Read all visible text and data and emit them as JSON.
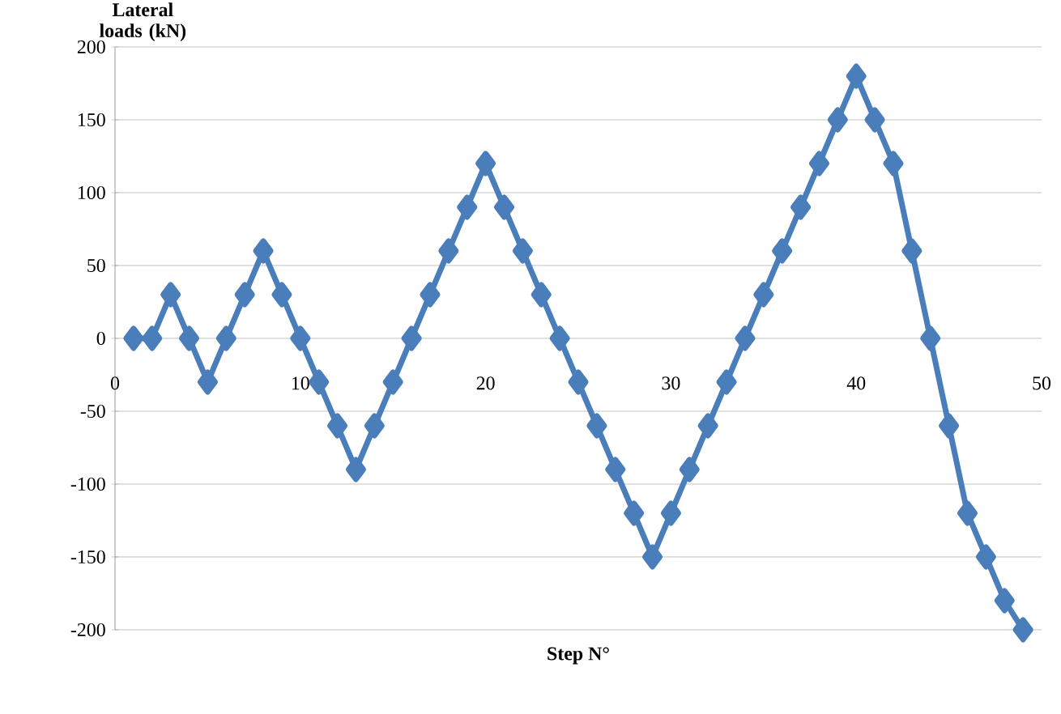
{
  "chart_data": {
    "type": "line",
    "xlabel": "Step N°",
    "ylabel": "Lateral loads (kN)",
    "x": [
      1,
      2,
      3,
      4,
      5,
      6,
      7,
      8,
      9,
      10,
      11,
      12,
      13,
      14,
      15,
      16,
      17,
      18,
      19,
      20,
      21,
      22,
      23,
      24,
      25,
      26,
      27,
      28,
      29,
      30,
      31,
      32,
      33,
      34,
      35,
      36,
      37,
      38,
      39,
      40,
      41,
      42,
      43,
      44,
      45,
      46,
      47,
      48,
      49
    ],
    "values": [
      0,
      0,
      30,
      0,
      -30,
      0,
      30,
      60,
      30,
      0,
      -30,
      -60,
      -90,
      -60,
      -30,
      0,
      30,
      60,
      90,
      120,
      90,
      60,
      30,
      0,
      -30,
      -60,
      -90,
      -120,
      -150,
      -120,
      -90,
      -60,
      -30,
      0,
      30,
      60,
      90,
      120,
      150,
      180,
      150,
      120,
      60,
      0,
      -60,
      -120,
      -150,
      -180,
      -200
    ],
    "color": "#4a7ebb",
    "marker": "diamond",
    "grid": "y",
    "xlim": [
      0,
      50
    ],
    "ylim": [
      -200,
      200
    ],
    "xticks": [
      0,
      10,
      20,
      30,
      40,
      50
    ],
    "yticks": [
      -200,
      -150,
      -100,
      -50,
      0,
      50,
      100,
      150,
      200
    ]
  }
}
